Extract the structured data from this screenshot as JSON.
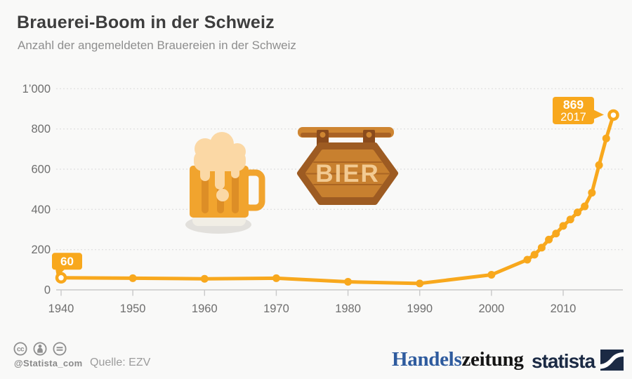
{
  "header": {
    "title": "Brauerei-Boom in der Schweiz",
    "subtitle": "Anzahl der angemeldeten Brauereien in der Schweiz"
  },
  "chart_data": {
    "type": "line",
    "title": "Brauerei-Boom in der Schweiz",
    "subtitle": "Anzahl der angemeldeten Brauereien in der Schweiz",
    "x": [
      1940,
      1950,
      1960,
      1970,
      1980,
      1990,
      2000,
      2005,
      2006,
      2007,
      2008,
      2009,
      2010,
      2011,
      2012,
      2013,
      2014,
      2015,
      2016,
      2017
    ],
    "values": [
      60,
      58,
      55,
      58,
      40,
      32,
      75,
      150,
      175,
      210,
      250,
      280,
      318,
      350,
      385,
      415,
      483,
      620,
      753,
      869
    ],
    "ylim": [
      0,
      1000
    ],
    "ytick_values": [
      0,
      200,
      400,
      600,
      800,
      1000
    ],
    "ytick_labels": [
      "0",
      "200",
      "400",
      "600",
      "800",
      "1’000"
    ],
    "xtick_values": [
      1940,
      1950,
      1960,
      1970,
      1980,
      1990,
      2000,
      2010
    ],
    "xtick_labels": [
      "1940",
      "1950",
      "1960",
      "1970",
      "1980",
      "1990",
      "2000",
      "2010"
    ],
    "grid": "horizontal dotted",
    "legend": "none",
    "annotations": [
      {
        "year": 1940,
        "value": 60,
        "label": "60",
        "tail": "down"
      },
      {
        "year": 2017,
        "value": 869,
        "label": "869",
        "sublabel": "2017",
        "tail": "right"
      }
    ]
  },
  "graphics": {
    "sign_label": "BIER",
    "icons": [
      "beer-mug-icon",
      "bier-sign-icon"
    ]
  },
  "footer": {
    "license_icons": [
      "cc",
      "attribution",
      "no-derivatives"
    ],
    "handle": "@Statista_com",
    "source": "Quelle: EZV",
    "partner_logo": {
      "part1": "Handels",
      "part2": "zeitung"
    },
    "brand_logo": "statista"
  },
  "colors": {
    "accent": "#F8A81D",
    "badge_text": "#FFFFFF",
    "grid": "#E2E2E2",
    "axis_line": "#C9C9C9",
    "axis_label": "#6E6E6E",
    "title": "#3D3D3D",
    "subtitle": "#8E8E8E",
    "partner_blue": "#2E5B9E",
    "brand_navy": "#1B2A44"
  }
}
